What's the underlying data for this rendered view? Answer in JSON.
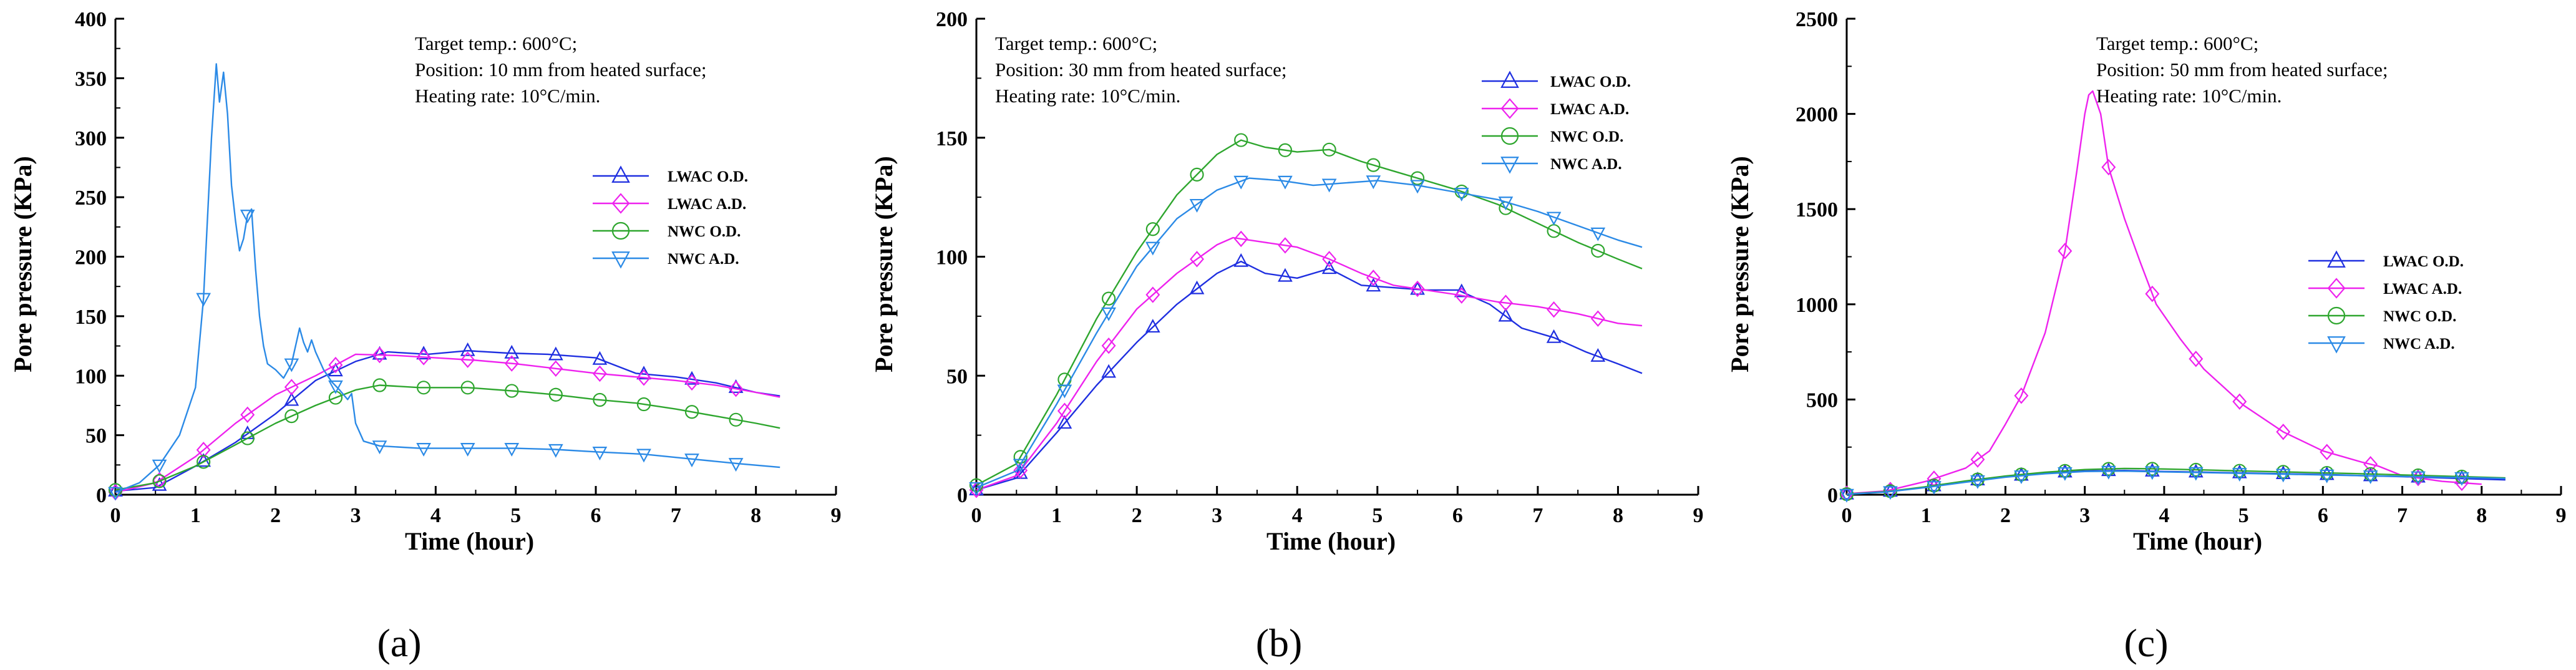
{
  "colors": {
    "lwac_od": "#1f2fe0",
    "lwac_ad": "#ee22ee",
    "nwc_od": "#2ea62e",
    "nwc_ad": "#2b8ae6"
  },
  "chart_data": [
    {
      "type": "line",
      "panel_label": "(a)",
      "xlabel": "Time (hour)",
      "ylabel": "Pore pressure (KPa)",
      "xlim": [
        0,
        9
      ],
      "ylim": [
        0,
        400
      ],
      "xticks": [
        0,
        1,
        2,
        3,
        4,
        5,
        6,
        7,
        8,
        9
      ],
      "yticks": [
        0,
        50,
        100,
        150,
        200,
        250,
        300,
        350,
        400
      ],
      "annotations": [
        "Target temp.: 600°C;",
        "Position: 10 mm from heated surface;",
        "Heating rate: 10°C/min."
      ],
      "legend_position": "right-middle",
      "series": [
        {
          "name": "LWAC O.D.",
          "color_key": "lwac_od",
          "marker": "triangle-up",
          "x": [
            0,
            0.5,
            1.0,
            1.5,
            2.0,
            2.5,
            3.0,
            3.4,
            3.9,
            4.4,
            4.9,
            5.4,
            6.0,
            6.5,
            7.0,
            7.5,
            8.0,
            8.3
          ],
          "y": [
            3,
            6,
            24,
            44,
            68,
            96,
            112,
            120,
            118,
            121,
            119,
            118,
            115,
            102,
            99,
            94,
            86,
            83
          ],
          "markers_x": [
            0,
            0.55,
            1.1,
            1.65,
            2.2,
            2.75,
            3.3,
            3.85,
            4.4,
            4.95,
            5.5,
            6.05,
            6.6,
            7.2,
            7.75
          ]
        },
        {
          "name": "LWAC A.D.",
          "color_key": "lwac_ad",
          "marker": "diamond",
          "x": [
            0,
            0.5,
            1.0,
            1.5,
            2.0,
            2.5,
            3.0,
            3.5,
            4.0,
            4.5,
            5.0,
            5.5,
            6.0,
            6.5,
            7.0,
            7.5,
            8.0,
            8.3
          ],
          "y": [
            2,
            10,
            32,
            60,
            84,
            100,
            118,
            117,
            115,
            113,
            110,
            106,
            102,
            99,
            96,
            92,
            86,
            82
          ],
          "markers_x": [
            0,
            0.55,
            1.1,
            1.65,
            2.2,
            2.75,
            3.3,
            3.85,
            4.4,
            4.95,
            5.5,
            6.05,
            6.6,
            7.2,
            7.75
          ]
        },
        {
          "name": "NWC O.D.",
          "color_key": "nwc_od",
          "marker": "circle",
          "x": [
            0,
            0.5,
            1.0,
            1.5,
            2.0,
            2.5,
            3.0,
            3.3,
            3.8,
            4.4,
            5.0,
            5.5,
            6.0,
            6.5,
            7.0,
            7.5,
            8.0,
            8.3
          ],
          "y": [
            4,
            10,
            24,
            42,
            60,
            75,
            88,
            92,
            90,
            90,
            87,
            84,
            80,
            77,
            72,
            66,
            60,
            56
          ],
          "markers_x": [
            0,
            0.55,
            1.1,
            1.65,
            2.2,
            2.75,
            3.3,
            3.85,
            4.4,
            4.95,
            5.5,
            6.05,
            6.6,
            7.2,
            7.75
          ]
        },
        {
          "name": "NWC A.D.",
          "color_key": "nwc_ad",
          "marker": "triangle-down",
          "x": [
            0,
            0.3,
            0.55,
            0.8,
            1.0,
            1.1,
            1.2,
            1.26,
            1.3,
            1.35,
            1.4,
            1.45,
            1.5,
            1.55,
            1.6,
            1.65,
            1.7,
            1.75,
            1.8,
            1.85,
            1.9,
            2.0,
            2.1,
            2.2,
            2.3,
            2.35,
            2.4,
            2.45,
            2.5,
            2.6,
            2.7,
            2.8,
            2.9,
            2.95,
            3.0,
            3.1,
            3.3,
            3.8,
            4.4,
            5.0,
            5.5,
            6.0,
            6.6,
            7.2,
            7.8,
            8.3
          ],
          "y": [
            2,
            10,
            25,
            50,
            90,
            165,
            300,
            362,
            330,
            355,
            320,
            260,
            230,
            205,
            215,
            235,
            240,
            190,
            150,
            125,
            110,
            105,
            98,
            110,
            140,
            128,
            120,
            130,
            120,
            105,
            95,
            88,
            80,
            85,
            60,
            45,
            41,
            39,
            39,
            39,
            38,
            36,
            34,
            30,
            26,
            23
          ],
          "markers_x": [
            0,
            0.55,
            1.1,
            1.65,
            2.2,
            2.75,
            3.3,
            3.85,
            4.4,
            4.95,
            5.5,
            6.05,
            6.6,
            7.2,
            7.75
          ]
        }
      ]
    },
    {
      "type": "line",
      "panel_label": "(b)",
      "xlabel": "Time (hour)",
      "ylabel": "Pore pressure (KPa)",
      "xlim": [
        0,
        9
      ],
      "ylim": [
        0,
        200
      ],
      "xticks": [
        0,
        1,
        2,
        3,
        4,
        5,
        6,
        7,
        8,
        9
      ],
      "yticks": [
        0,
        50,
        100,
        150,
        200
      ],
      "annotations": [
        "Target temp.: 600°C;",
        "Position: 30 mm from heated surface;",
        "Heating rate: 10°C/min."
      ],
      "legend_position": "top-right",
      "series": [
        {
          "name": "LWAC O.D.",
          "color_key": "lwac_od",
          "marker": "triangle-up",
          "x": [
            0,
            0.5,
            1.0,
            1.5,
            2.0,
            2.5,
            3.0,
            3.3,
            3.6,
            4.0,
            4.4,
            4.8,
            5.2,
            5.6,
            6.0,
            6.4,
            6.8,
            7.2,
            7.6,
            8.0,
            8.3
          ],
          "y": [
            2,
            7,
            26,
            46,
            64,
            80,
            93,
            98,
            93,
            91,
            95,
            88,
            87,
            86,
            86,
            80,
            70,
            66,
            60,
            55,
            51
          ],
          "markers_x": [
            0,
            0.55,
            1.1,
            1.65,
            2.2,
            2.75,
            3.3,
            3.85,
            4.4,
            4.95,
            5.5,
            6.05,
            6.6,
            7.2,
            7.75
          ]
        },
        {
          "name": "LWAC A.D.",
          "color_key": "lwac_ad",
          "marker": "diamond",
          "x": [
            0,
            0.5,
            1.0,
            1.5,
            2.0,
            2.5,
            3.0,
            3.2,
            3.6,
            4.0,
            4.4,
            4.8,
            5.2,
            5.6,
            6.0,
            6.5,
            7.0,
            7.5,
            8.0,
            8.3
          ],
          "y": [
            2,
            8,
            30,
            56,
            78,
            93,
            105,
            108,
            106,
            104,
            99,
            93,
            88,
            86,
            84,
            81,
            79,
            76,
            72,
            71
          ],
          "markers_x": [
            0,
            0.55,
            1.1,
            1.65,
            2.2,
            2.75,
            3.3,
            3.85,
            4.4,
            4.95,
            5.5,
            6.05,
            6.6,
            7.2,
            7.75
          ]
        },
        {
          "name": "NWC O.D.",
          "color_key": "nwc_od",
          "marker": "circle",
          "x": [
            0,
            0.5,
            1.0,
            1.5,
            2.0,
            2.5,
            3.0,
            3.3,
            3.6,
            4.0,
            4.4,
            4.8,
            5.2,
            5.6,
            6.0,
            6.5,
            7.0,
            7.5,
            8.0,
            8.3
          ],
          "y": [
            4,
            13,
            42,
            74,
            102,
            126,
            143,
            149,
            146,
            144,
            145,
            140,
            136,
            132,
            128,
            122,
            114,
            106,
            99,
            95
          ],
          "markers_x": [
            0,
            0.55,
            1.1,
            1.65,
            2.2,
            2.75,
            3.3,
            3.85,
            4.4,
            4.95,
            5.5,
            6.05,
            6.6,
            7.2,
            7.75
          ]
        },
        {
          "name": "NWC A.D.",
          "color_key": "nwc_ad",
          "marker": "triangle-down",
          "x": [
            0,
            0.5,
            1.0,
            1.5,
            2.0,
            2.5,
            3.0,
            3.4,
            3.8,
            4.2,
            4.6,
            5.0,
            5.5,
            6.0,
            6.5,
            7.0,
            7.5,
            8.0,
            8.3
          ],
          "y": [
            3,
            10,
            38,
            68,
            96,
            116,
            128,
            133,
            132,
            130,
            131,
            132,
            130,
            127,
            124,
            119,
            113,
            107,
            104
          ],
          "markers_x": [
            0,
            0.55,
            1.1,
            1.65,
            2.2,
            2.75,
            3.3,
            3.85,
            4.4,
            4.95,
            5.5,
            6.05,
            6.6,
            7.2,
            7.75
          ]
        }
      ]
    },
    {
      "type": "line",
      "panel_label": "(c)",
      "xlabel": "Time (hour)",
      "ylabel": "Pore pressure (KPa)",
      "xlim": [
        0,
        9
      ],
      "ylim": [
        0,
        2500
      ],
      "xticks": [
        0,
        1,
        2,
        3,
        4,
        5,
        6,
        7,
        8,
        9
      ],
      "yticks": [
        0,
        500,
        1000,
        1500,
        2000,
        2500
      ],
      "annotations": [
        "Target temp.: 600°C;",
        "Position: 50 mm from heated surface;",
        "Heating rate: 10°C/min."
      ],
      "legend_position": "right-middle",
      "series": [
        {
          "name": "LWAC O.D.",
          "color_key": "lwac_od",
          "marker": "triangle-up",
          "x": [
            0,
            0.5,
            1.0,
            1.5,
            2.0,
            2.5,
            3.0,
            3.5,
            4.0,
            4.5,
            5.0,
            5.5,
            6.0,
            6.5,
            7.0,
            7.5,
            8.0,
            8.3
          ],
          "y": [
            3,
            15,
            40,
            70,
            95,
            112,
            125,
            127,
            122,
            118,
            114,
            110,
            106,
            100,
            95,
            88,
            82,
            78
          ],
          "markers_x": [
            0,
            0.55,
            1.1,
            1.65,
            2.2,
            2.75,
            3.3,
            3.85,
            4.4,
            4.95,
            5.5,
            6.05,
            6.6,
            7.2,
            7.75
          ]
        },
        {
          "name": "LWAC A.D.",
          "color_key": "lwac_ad",
          "marker": "diamond",
          "x": [
            0,
            0.5,
            1.0,
            1.5,
            1.8,
            2.0,
            2.2,
            2.5,
            2.75,
            2.9,
            3.0,
            3.05,
            3.1,
            3.2,
            3.3,
            3.5,
            3.7,
            3.9,
            4.2,
            4.5,
            5.0,
            5.5,
            6.0,
            6.5,
            6.7,
            7.0,
            7.5,
            8.0
          ],
          "y": [
            5,
            20,
            70,
            140,
            230,
            370,
            520,
            850,
            1280,
            1700,
            2000,
            2100,
            2120,
            2000,
            1720,
            1450,
            1220,
            1000,
            820,
            660,
            470,
            330,
            230,
            170,
            150,
            100,
            70,
            55
          ],
          "markers_x": [
            0,
            0.55,
            1.1,
            1.65,
            2.2,
            2.75,
            3.3,
            3.85,
            4.4,
            4.95,
            5.5,
            6.05,
            6.6,
            7.2,
            7.75
          ]
        },
        {
          "name": "NWC O.D.",
          "color_key": "nwc_od",
          "marker": "circle",
          "x": [
            0,
            0.5,
            1.0,
            1.5,
            2.0,
            2.5,
            3.0,
            3.5,
            4.0,
            4.5,
            5.0,
            5.5,
            6.0,
            6.5,
            7.0,
            7.5,
            8.0,
            8.3
          ],
          "y": [
            3,
            16,
            42,
            72,
            98,
            118,
            132,
            138,
            135,
            130,
            125,
            120,
            115,
            110,
            104,
            98,
            92,
            88
          ],
          "markers_x": [
            0,
            0.55,
            1.1,
            1.65,
            2.2,
            2.75,
            3.3,
            3.85,
            4.4,
            4.95,
            5.5,
            6.05,
            6.6,
            7.2,
            7.75
          ]
        },
        {
          "name": "NWC A.D.",
          "color_key": "nwc_ad",
          "marker": "triangle-down",
          "x": [
            0,
            0.5,
            1.0,
            1.5,
            2.0,
            2.5,
            3.0,
            3.5,
            4.0,
            4.5,
            5.0,
            5.5,
            6.0,
            6.5,
            7.0,
            7.5,
            8.0,
            8.3
          ],
          "y": [
            2,
            14,
            38,
            66,
            92,
            110,
            122,
            124,
            120,
            116,
            112,
            108,
            104,
            100,
            96,
            92,
            88,
            85
          ],
          "markers_x": [
            0,
            0.55,
            1.1,
            1.65,
            2.2,
            2.75,
            3.3,
            3.85,
            4.4,
            4.95,
            5.5,
            6.05,
            6.6,
            7.2,
            7.75
          ]
        }
      ]
    }
  ]
}
